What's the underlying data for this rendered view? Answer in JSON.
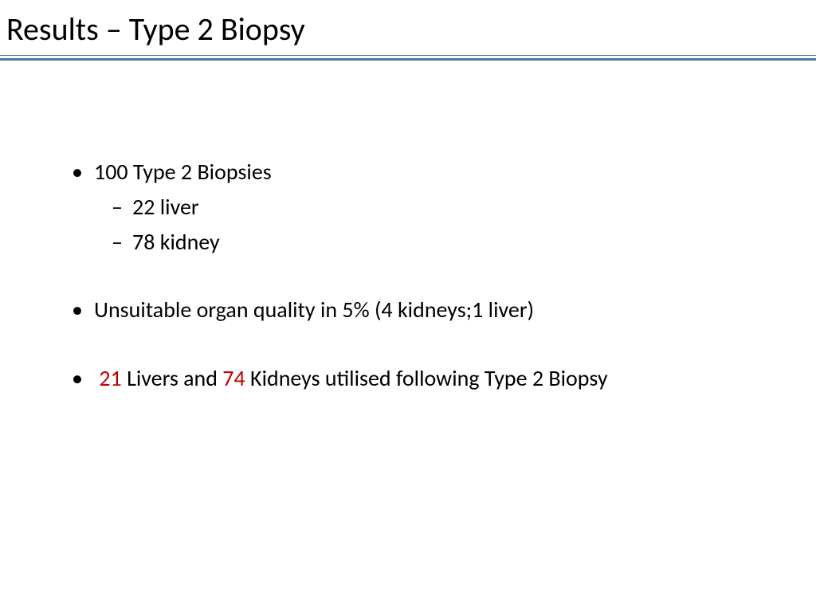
{
  "title": "Results – Type 2 Biopsy",
  "colors": {
    "title_text": "#000000",
    "body_text": "#000000",
    "highlight": "#c00000",
    "divider": "#4a7ba6",
    "background": "#ffffff"
  },
  "typography": {
    "title_fontsize": 40,
    "body_fontsize": 28,
    "font_family": "Calibri"
  },
  "bullets": {
    "b1": "100 Type 2 Biopsies",
    "b1_sub1": "22 liver",
    "b1_sub2": "78 kidney",
    "b2": "Unsuitable organ quality in 5% (4 kidneys;1 liver)",
    "b3_num1": "21",
    "b3_mid1": " Livers and ",
    "b3_num2": "74",
    "b3_mid2": " Kidneys utilised following Type 2 Biopsy"
  }
}
